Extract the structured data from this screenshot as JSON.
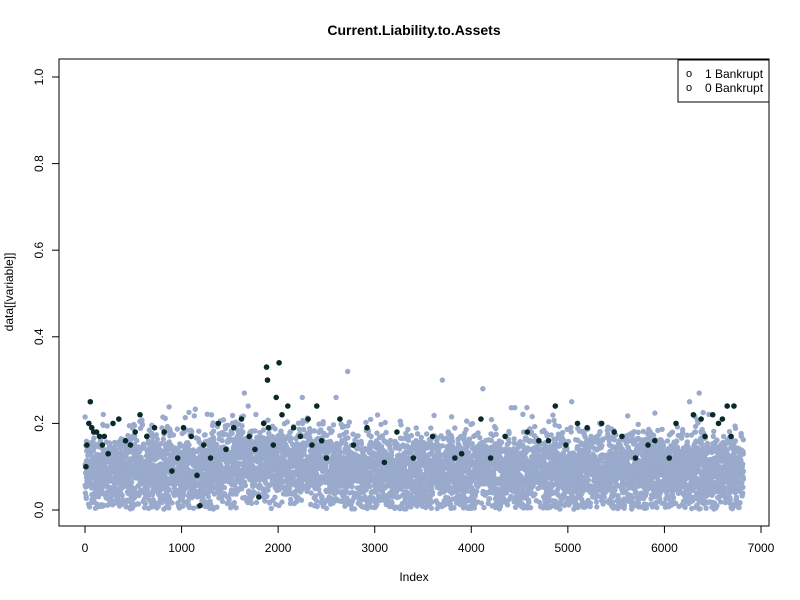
{
  "chart_data": {
    "type": "scatter",
    "title": "Current.Liability.to.Assets",
    "xlabel": "Index",
    "ylabel": "data[[variable]]",
    "xlim": [
      0,
      7000
    ],
    "ylim": [
      0,
      1
    ],
    "x_ticks": [
      "0",
      "1000",
      "2000",
      "3000",
      "4000",
      "5000",
      "6000",
      "7000"
    ],
    "y_ticks": [
      "0.0",
      "0.2",
      "0.4",
      "0.6",
      "0.8",
      "1.0"
    ],
    "grid": false,
    "legend_position": "top-right",
    "legend": [
      {
        "symbol": "o",
        "label": "1 Bankrupt"
      },
      {
        "symbol": "o",
        "label": "0 Bankrupt"
      }
    ],
    "series": [
      {
        "color": "#99AACC",
        "n_points": 6819,
        "x_range": [
          1,
          6819
        ],
        "y_typical_range": [
          0.0,
          0.25
        ],
        "y_mean": 0.09,
        "notable_points": [
          {
            "x": 1650,
            "y": 0.27
          },
          {
            "x": 1690,
            "y": 0.24
          },
          {
            "x": 2250,
            "y": 0.26
          },
          {
            "x": 2720,
            "y": 0.32
          },
          {
            "x": 3700,
            "y": 0.3
          },
          {
            "x": 4120,
            "y": 0.28
          },
          {
            "x": 5040,
            "y": 0.25
          },
          {
            "x": 6260,
            "y": 0.25
          },
          {
            "x": 6360,
            "y": 0.27
          },
          {
            "x": 2600,
            "y": 0.26
          }
        ]
      },
      {
        "color": "#0A2A2A",
        "points": [
          [
            10,
            0.1
          ],
          [
            20,
            0.15
          ],
          [
            40,
            0.2
          ],
          [
            55,
            0.25
          ],
          [
            70,
            0.19
          ],
          [
            90,
            0.18
          ],
          [
            120,
            0.18
          ],
          [
            150,
            0.17
          ],
          [
            180,
            0.15
          ],
          [
            200,
            0.17
          ],
          [
            240,
            0.13
          ],
          [
            290,
            0.2
          ],
          [
            350,
            0.21
          ],
          [
            420,
            0.16
          ],
          [
            470,
            0.15
          ],
          [
            520,
            0.18
          ],
          [
            570,
            0.22
          ],
          [
            640,
            0.17
          ],
          [
            720,
            0.19
          ],
          [
            820,
            0.18
          ],
          [
            900,
            0.09
          ],
          [
            960,
            0.12
          ],
          [
            1020,
            0.19
          ],
          [
            1100,
            0.17
          ],
          [
            1160,
            0.08
          ],
          [
            1190,
            0.01
          ],
          [
            1230,
            0.15
          ],
          [
            1300,
            0.12
          ],
          [
            1380,
            0.2
          ],
          [
            1460,
            0.14
          ],
          [
            1540,
            0.19
          ],
          [
            1620,
            0.21
          ],
          [
            1700,
            0.17
          ],
          [
            1760,
            0.14
          ],
          [
            1800,
            0.03
          ],
          [
            1850,
            0.2
          ],
          [
            1880,
            0.33
          ],
          [
            1890,
            0.3
          ],
          [
            1900,
            0.19
          ],
          [
            1950,
            0.15
          ],
          [
            1980,
            0.26
          ],
          [
            2010,
            0.34
          ],
          [
            2040,
            0.22
          ],
          [
            2100,
            0.24
          ],
          [
            2160,
            0.19
          ],
          [
            2230,
            0.17
          ],
          [
            2310,
            0.21
          ],
          [
            2350,
            0.15
          ],
          [
            2400,
            0.24
          ],
          [
            2450,
            0.16
          ],
          [
            2500,
            0.12
          ],
          [
            2640,
            0.21
          ],
          [
            2780,
            0.15
          ],
          [
            2920,
            0.19
          ],
          [
            3100,
            0.11
          ],
          [
            3230,
            0.18
          ],
          [
            3400,
            0.12
          ],
          [
            3600,
            0.17
          ],
          [
            3830,
            0.12
          ],
          [
            3900,
            0.13
          ],
          [
            4100,
            0.21
          ],
          [
            4200,
            0.12
          ],
          [
            4350,
            0.17
          ],
          [
            4580,
            0.18
          ],
          [
            4700,
            0.16
          ],
          [
            4800,
            0.16
          ],
          [
            4870,
            0.24
          ],
          [
            4980,
            0.15
          ],
          [
            5100,
            0.2
          ],
          [
            5200,
            0.19
          ],
          [
            5350,
            0.2
          ],
          [
            5480,
            0.18
          ],
          [
            5560,
            0.17
          ],
          [
            5700,
            0.12
          ],
          [
            5830,
            0.15
          ],
          [
            5900,
            0.16
          ],
          [
            6050,
            0.12
          ],
          [
            6120,
            0.2
          ],
          [
            6300,
            0.22
          ],
          [
            6380,
            0.21
          ],
          [
            6420,
            0.17
          ],
          [
            6500,
            0.22
          ],
          [
            6560,
            0.2
          ],
          [
            6600,
            0.21
          ],
          [
            6650,
            0.24
          ],
          [
            6690,
            0.17
          ],
          [
            6720,
            0.24
          ]
        ]
      }
    ]
  }
}
